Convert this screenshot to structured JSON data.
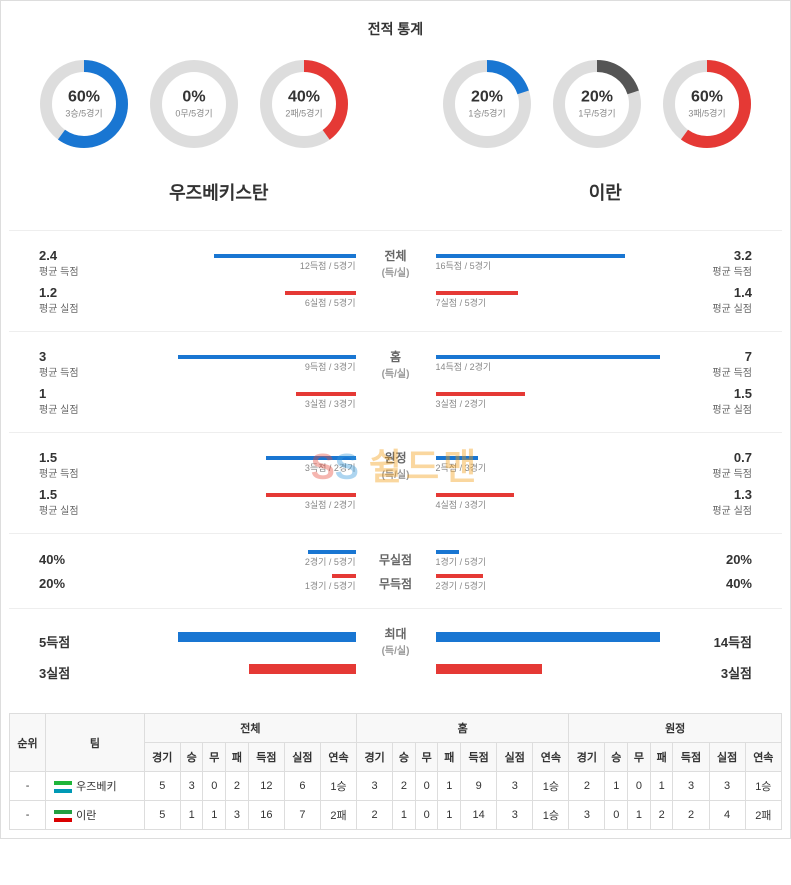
{
  "title": "전적 통계",
  "blue": "#1976d2",
  "red": "#e53935",
  "gray": "#ddd",
  "dark_gray": "#555",
  "team_left": "우즈베키스탄",
  "team_right": "이란",
  "donuts": {
    "left": [
      {
        "pct": "60%",
        "sub": "3승/5경기",
        "value": 60,
        "color": "#1976d2"
      },
      {
        "pct": "0%",
        "sub": "0무/5경기",
        "value": 0,
        "color": "#1976d2"
      },
      {
        "pct": "40%",
        "sub": "2패/5경기",
        "value": 40,
        "color": "#e53935"
      }
    ],
    "right": [
      {
        "pct": "20%",
        "sub": "1승/5경기",
        "value": 20,
        "color": "#1976d2"
      },
      {
        "pct": "20%",
        "sub": "1무/5경기",
        "value": 20,
        "color": "#555"
      },
      {
        "pct": "60%",
        "sub": "3패/5경기",
        "value": 60,
        "color": "#e53935"
      }
    ]
  },
  "stat_groups": [
    {
      "center": [
        "전체",
        "(득/실)"
      ],
      "rows": [
        {
          "lv": "2.4",
          "ll": "평균 득점",
          "lb_label": "12득점 / 5경기",
          "lb_w": 60,
          "lb_c": "#1976d2",
          "rv": "3.2",
          "rl": "평균 득점",
          "rb_label": "16득점 / 5경기",
          "rb_w": 80,
          "rb_c": "#1976d2"
        },
        {
          "lv": "1.2",
          "ll": "평균 실점",
          "lb_label": "6실점 / 5경기",
          "lb_w": 30,
          "lb_c": "#e53935",
          "rv": "1.4",
          "rl": "평균 실점",
          "rb_label": "7실점 / 5경기",
          "rb_w": 35,
          "rb_c": "#e53935"
        }
      ]
    },
    {
      "center": [
        "홈",
        "(득/실)"
      ],
      "rows": [
        {
          "lv": "3",
          "ll": "평균 득점",
          "lb_label": "9득점 / 3경기",
          "lb_w": 75,
          "lb_c": "#1976d2",
          "rv": "7",
          "rl": "평균 득점",
          "rb_label": "14득점 / 2경기",
          "rb_w": 95,
          "rb_c": "#1976d2"
        },
        {
          "lv": "1",
          "ll": "평균 실점",
          "lb_label": "3실점 / 3경기",
          "lb_w": 25,
          "lb_c": "#e53935",
          "rv": "1.5",
          "rl": "평균 실점",
          "rb_label": "3실점 / 2경기",
          "rb_w": 38,
          "rb_c": "#e53935"
        }
      ]
    },
    {
      "center": [
        "원정",
        "(득/실)"
      ],
      "rows": [
        {
          "lv": "1.5",
          "ll": "평균 득점",
          "lb_label": "3득점 / 2경기",
          "lb_w": 38,
          "lb_c": "#1976d2",
          "rv": "0.7",
          "rl": "평균 득점",
          "rb_label": "2득점 / 3경기",
          "rb_w": 18,
          "rb_c": "#1976d2"
        },
        {
          "lv": "1.5",
          "ll": "평균 실점",
          "lb_label": "3실점 / 2경기",
          "lb_w": 38,
          "lb_c": "#e53935",
          "rv": "1.3",
          "rl": "평균 실점",
          "rb_label": "4실점 / 3경기",
          "rb_w": 33,
          "rb_c": "#e53935"
        }
      ]
    },
    {
      "center": [
        "무실점",
        "무득점"
      ],
      "split_center": true,
      "rows": [
        {
          "lv": "40%",
          "ll": "",
          "lb_label": "2경기 / 5경기",
          "lb_w": 20,
          "lb_c": "#1976d2",
          "rv": "20%",
          "rl": "",
          "rb_label": "1경기 / 5경기",
          "rb_w": 10,
          "rb_c": "#1976d2"
        },
        {
          "lv": "20%",
          "ll": "",
          "lb_label": "1경기 / 5경기",
          "lb_w": 10,
          "lb_c": "#e53935",
          "rv": "40%",
          "rl": "",
          "rb_label": "2경기 / 5경기",
          "rb_w": 20,
          "rb_c": "#e53935"
        }
      ]
    },
    {
      "center": [
        "최대",
        "(득/실)"
      ],
      "rows": [
        {
          "lv": "5득점",
          "ll": "",
          "lb_label": "",
          "lb_w": 75,
          "lb_c": "#1976d2",
          "rv": "14득점",
          "rl": "",
          "rb_label": "",
          "rb_w": 95,
          "rb_c": "#1976d2"
        },
        {
          "lv": "3실점",
          "ll": "",
          "lb_label": "",
          "lb_w": 45,
          "lb_c": "#e53935",
          "rv": "3실점",
          "rl": "",
          "rb_label": "",
          "rb_w": 45,
          "rb_c": "#e53935"
        }
      ]
    }
  ],
  "table": {
    "main_headers": [
      "전체",
      "홈",
      "원정"
    ],
    "sub_headers": [
      "순위",
      "팀",
      "경기",
      "승",
      "무",
      "패",
      "득점",
      "실점",
      "연속",
      "경기",
      "승",
      "무",
      "패",
      "득점",
      "실점",
      "연속",
      "경기",
      "승",
      "무",
      "패",
      "득점",
      "실점",
      "연속"
    ],
    "rows": [
      {
        "rank": "-",
        "flag_colors": [
          "#1eb53a",
          "#fff",
          "#0099b5"
        ],
        "team": "우즈베키",
        "cells": [
          "5",
          "3",
          "0",
          "2",
          "12",
          "6",
          "1승",
          "3",
          "2",
          "0",
          "1",
          "9",
          "3",
          "1승",
          "2",
          "1",
          "0",
          "1",
          "3",
          "3",
          "1승"
        ]
      },
      {
        "rank": "-",
        "flag_colors": [
          "#239f40",
          "#fff",
          "#da0000"
        ],
        "team": "이란",
        "cells": [
          "5",
          "1",
          "1",
          "3",
          "16",
          "7",
          "2패",
          "2",
          "1",
          "0",
          "1",
          "14",
          "3",
          "1승",
          "3",
          "0",
          "1",
          "2",
          "2",
          "4",
          "2패"
        ]
      }
    ]
  }
}
